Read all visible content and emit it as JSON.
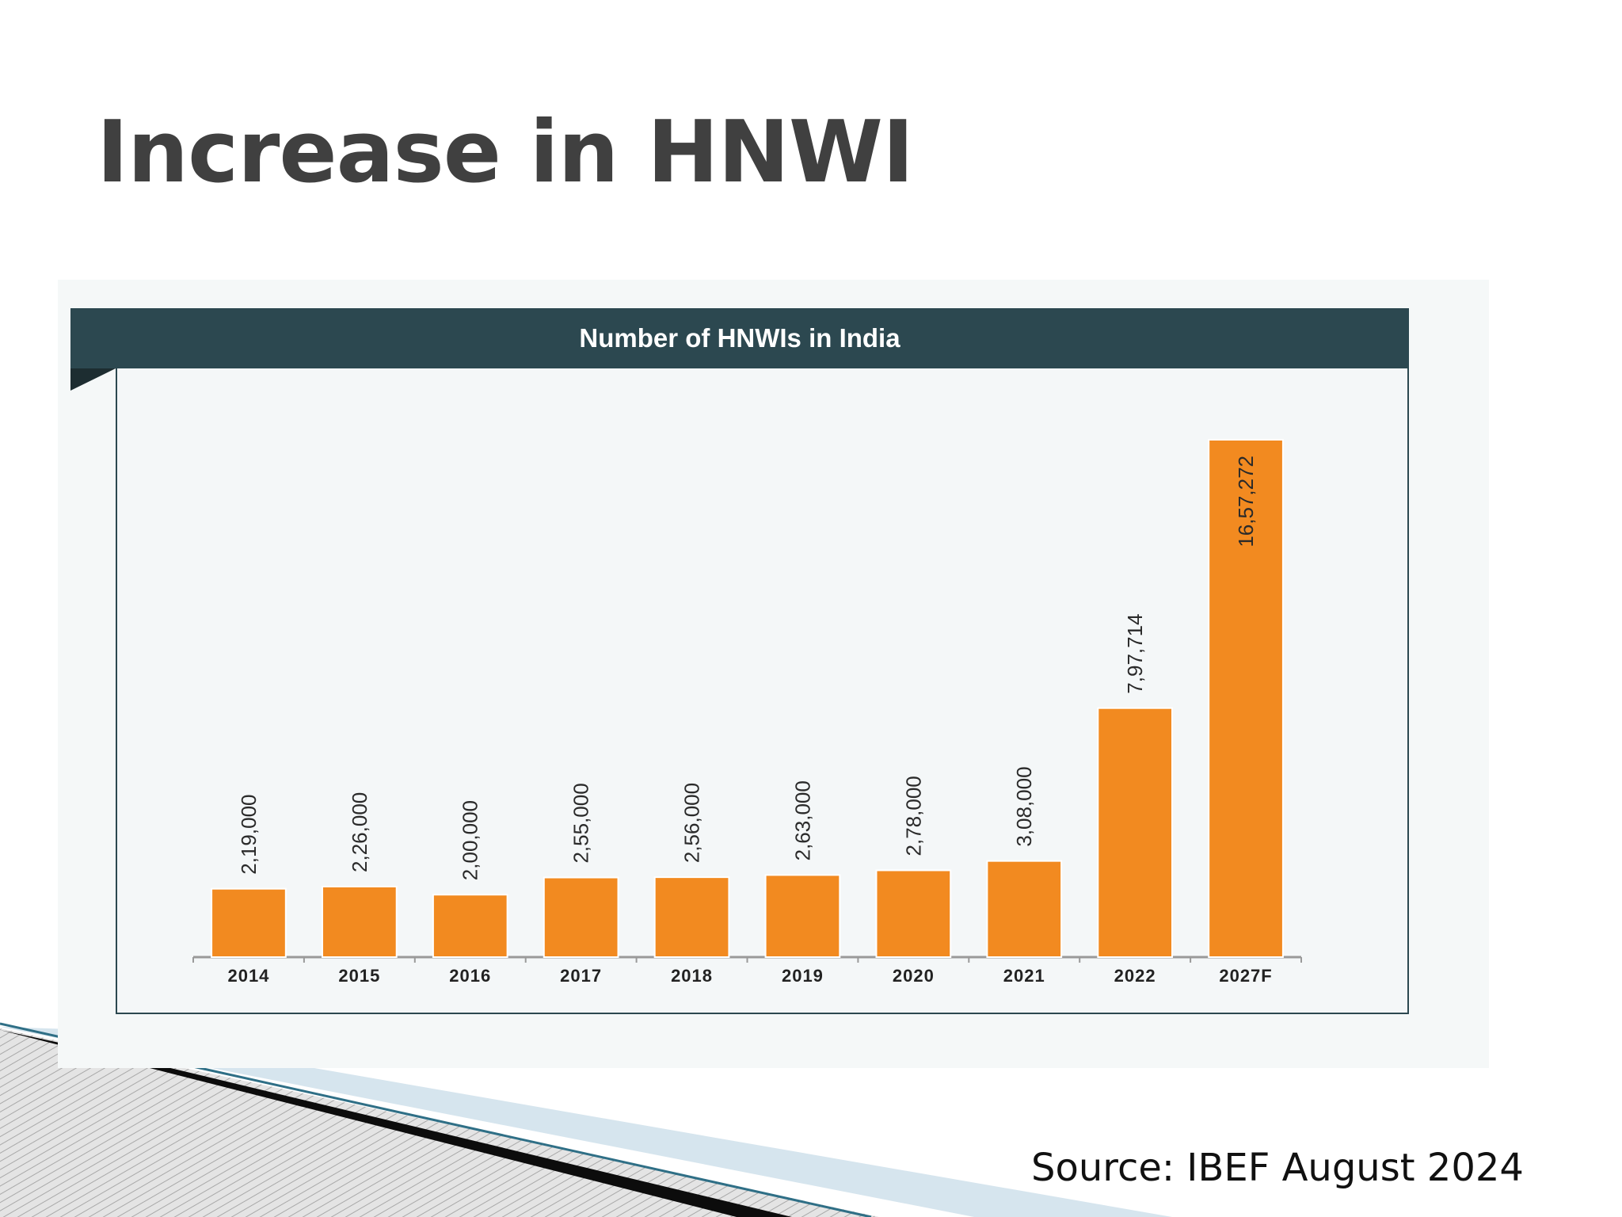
{
  "slide": {
    "title": "Increase in HNWI",
    "source": "Source: IBEF August 2024"
  },
  "colors": {
    "bar": "#f28a20",
    "header_bg": "#2c4850",
    "title_text": "#404040"
  },
  "chart_data": {
    "type": "bar",
    "title": "Number of HNWIs in India",
    "xlabel": "",
    "ylabel": "",
    "categories": [
      "2014",
      "2015",
      "2016",
      "2017",
      "2018",
      "2019",
      "2020",
      "2021",
      "2022",
      "2027F"
    ],
    "values": [
      219000,
      226000,
      200000,
      255000,
      256000,
      263000,
      278000,
      308000,
      797714,
      1657272
    ],
    "value_labels": [
      "2,19,000",
      "2,26,000",
      "2,00,000",
      "2,55,000",
      "2,56,000",
      "2,63,000",
      "2,78,000",
      "3,08,000",
      "7,97,714",
      "16,57,272"
    ],
    "ylim": [
      0,
      1657272
    ],
    "grid": false,
    "legend": "none"
  }
}
